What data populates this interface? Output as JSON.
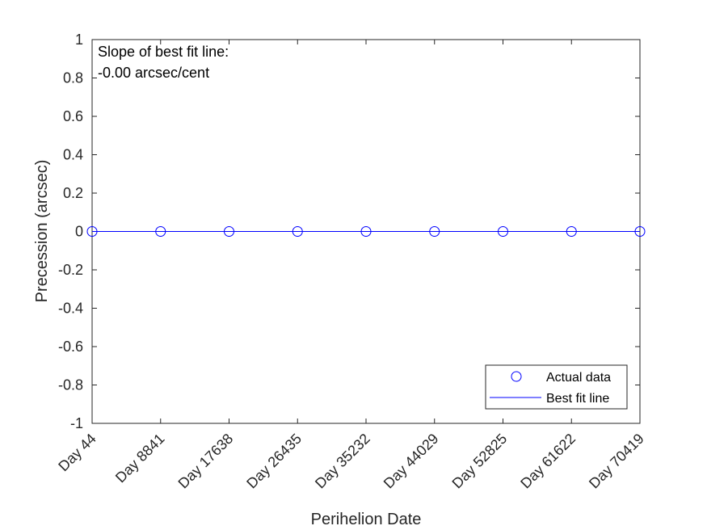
{
  "chart_data": {
    "type": "scatter",
    "xlabel": "Perihelion Date",
    "ylabel": "Precession (arcsec)",
    "categories": [
      "Day 44",
      "Day 8841",
      "Day 17638",
      "Day 26435",
      "Day 35232",
      "Day 44029",
      "Day 52825",
      "Day 61622",
      "Day 70419"
    ],
    "ylim": [
      -1,
      1
    ],
    "yticks": [
      "1",
      "0.8",
      "0.6",
      "0.4",
      "0.2",
      "0",
      "-0.2",
      "-0.4",
      "-0.6",
      "-0.8",
      "-1"
    ],
    "series": [
      {
        "name": "Actual data",
        "kind": "markers",
        "marker": "circle",
        "color": "#0000ff",
        "values": [
          0,
          0,
          0,
          0,
          0,
          0,
          0,
          0,
          0
        ]
      },
      {
        "name": "Best fit line",
        "kind": "line",
        "color": "#0000ff",
        "values": [
          0,
          0,
          0,
          0,
          0,
          0,
          0,
          0,
          0
        ]
      }
    ],
    "annotation": [
      "Slope of best fit line:",
      "-0.00 arcsec/cent"
    ],
    "legend": {
      "position": "bottom-right"
    },
    "grid": false
  }
}
